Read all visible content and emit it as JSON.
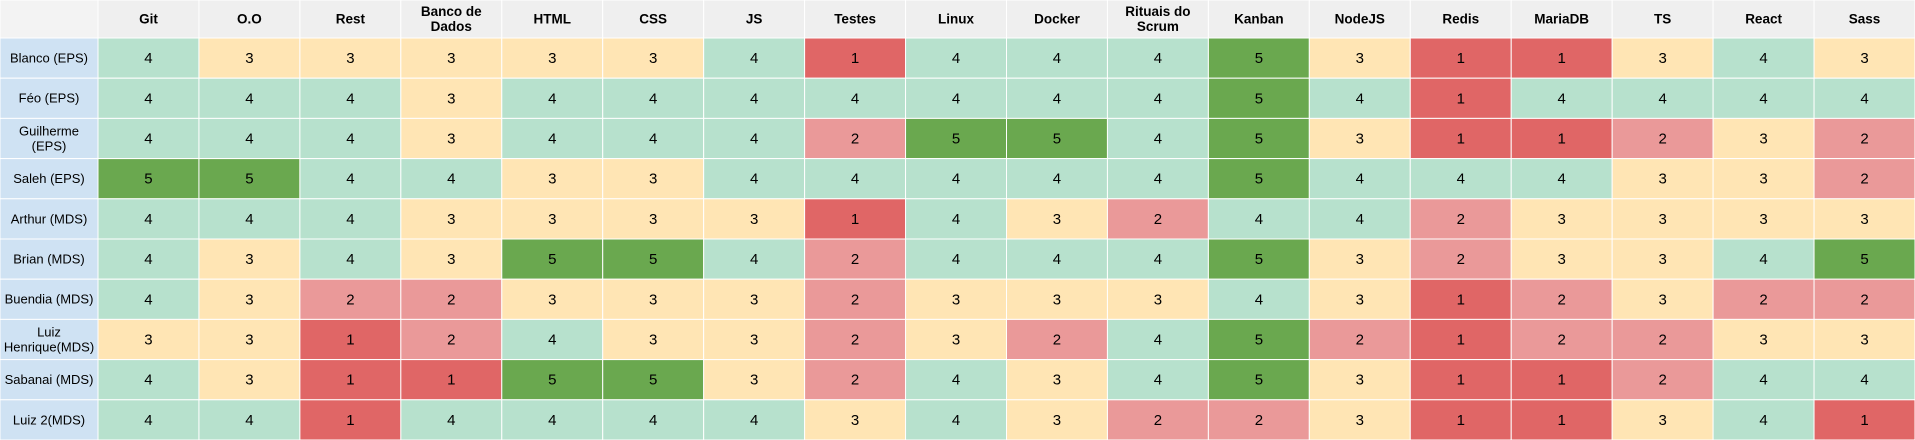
{
  "chart_data": {
    "type": "heatmap",
    "title": "",
    "columns": [
      "Git",
      "O.O",
      "Rest",
      "Banco de Dados",
      "HTML",
      "CSS",
      "JS",
      "Testes",
      "Linux",
      "Docker",
      "Rituais do Scrum",
      "Kanban",
      "NodeJS",
      "Redis",
      "MariaDB",
      "TS",
      "React",
      "Sass"
    ],
    "column_lines": [
      [
        "Git"
      ],
      [
        "O.O"
      ],
      [
        "Rest"
      ],
      [
        "Banco de",
        "Dados"
      ],
      [
        "HTML"
      ],
      [
        "CSS"
      ],
      [
        "JS"
      ],
      [
        "Testes"
      ],
      [
        "Linux"
      ],
      [
        "Docker"
      ],
      [
        "Rituais do",
        "Scrum"
      ],
      [
        "Kanban"
      ],
      [
        "NodeJS"
      ],
      [
        "Redis"
      ],
      [
        "MariaDB"
      ],
      [
        "TS"
      ],
      [
        "React"
      ],
      [
        "Sass"
      ]
    ],
    "rows": [
      "Blanco (EPS)",
      "Féo (EPS)",
      "Guilherme (EPS)",
      "Saleh (EPS)",
      "Arthur (MDS)",
      "Brian (MDS)",
      "Buendia (MDS)",
      "Luiz Henrique(MDS)",
      "Sabanai (MDS)",
      "Luiz 2(MDS)"
    ],
    "row_lines": [
      [
        "Blanco (EPS)"
      ],
      [
        "Féo (EPS)"
      ],
      [
        "Guilherme",
        "(EPS)"
      ],
      [
        "Saleh (EPS)"
      ],
      [
        "Arthur (MDS)"
      ],
      [
        "Brian (MDS)"
      ],
      [
        "Buendia (MDS)"
      ],
      [
        "Luiz",
        "Henrique(MDS)"
      ],
      [
        "Sabanai (MDS)"
      ],
      [
        "Luiz 2(MDS)"
      ]
    ],
    "values": [
      [
        4,
        3,
        3,
        3,
        3,
        3,
        4,
        1,
        4,
        4,
        4,
        5,
        3,
        1,
        1,
        3,
        4,
        3
      ],
      [
        4,
        4,
        4,
        3,
        4,
        4,
        4,
        4,
        4,
        4,
        4,
        5,
        4,
        1,
        4,
        4,
        4,
        4
      ],
      [
        4,
        4,
        4,
        3,
        4,
        4,
        4,
        2,
        5,
        5,
        4,
        5,
        3,
        1,
        1,
        2,
        3,
        2
      ],
      [
        5,
        5,
        4,
        4,
        3,
        3,
        4,
        4,
        4,
        4,
        4,
        5,
        4,
        4,
        4,
        3,
        3,
        2
      ],
      [
        4,
        4,
        4,
        3,
        3,
        3,
        3,
        1,
        4,
        3,
        2,
        4,
        4,
        2,
        3,
        3,
        3,
        3
      ],
      [
        4,
        3,
        4,
        3,
        5,
        5,
        4,
        2,
        4,
        4,
        4,
        5,
        3,
        2,
        3,
        3,
        4,
        5
      ],
      [
        4,
        3,
        2,
        2,
        3,
        3,
        3,
        2,
        3,
        3,
        3,
        4,
        3,
        1,
        2,
        3,
        2,
        2
      ],
      [
        3,
        3,
        1,
        2,
        4,
        3,
        3,
        2,
        3,
        2,
        4,
        5,
        2,
        1,
        2,
        2,
        3,
        3
      ],
      [
        4,
        3,
        1,
        1,
        5,
        5,
        3,
        2,
        4,
        3,
        4,
        5,
        3,
        1,
        1,
        2,
        4,
        4
      ],
      [
        4,
        4,
        1,
        4,
        4,
        4,
        4,
        3,
        4,
        3,
        2,
        2,
        3,
        1,
        1,
        3,
        4,
        1
      ]
    ],
    "color_scale": {
      "1": "#e06666",
      "2": "#ea9999",
      "3": "#ffe5b4",
      "4": "#b7e1cd",
      "5": "#6aa84f"
    },
    "header_color": "#efefef",
    "row_header_color": "#cfe2f3",
    "corner_color": "#f3f3f3",
    "border_color": "#ffffff",
    "text_color": "#000000"
  }
}
